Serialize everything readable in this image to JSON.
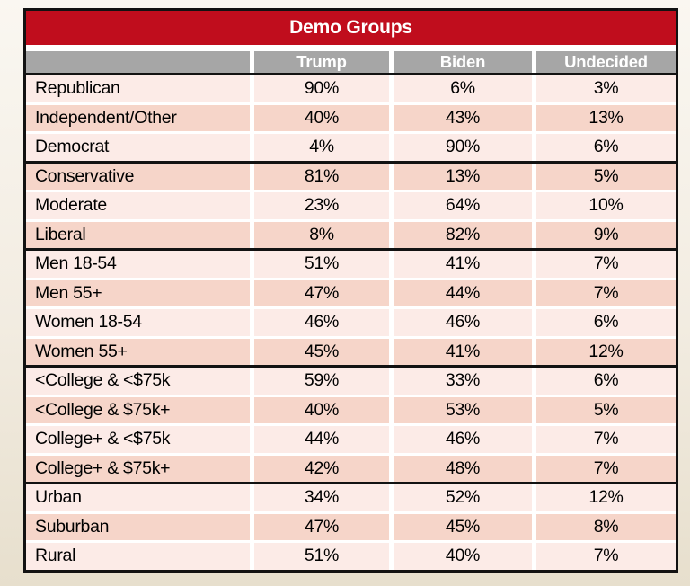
{
  "chart_data": {
    "type": "table",
    "title": "Demo Groups",
    "columns": [
      "",
      "Trump",
      "Biden",
      "Undecided"
    ],
    "row_groups": [
      [
        {
          "label": "Republican",
          "values": [
            "90%",
            "6%",
            "3%"
          ]
        },
        {
          "label": "Independent/Other",
          "values": [
            "40%",
            "43%",
            "13%"
          ]
        },
        {
          "label": "Democrat",
          "values": [
            "4%",
            "90%",
            "6%"
          ]
        }
      ],
      [
        {
          "label": "Conservative",
          "values": [
            "81%",
            "13%",
            "5%"
          ]
        },
        {
          "label": "Moderate",
          "values": [
            "23%",
            "64%",
            "10%"
          ]
        },
        {
          "label": "Liberal",
          "values": [
            "8%",
            "82%",
            "9%"
          ]
        }
      ],
      [
        {
          "label": "Men 18-54",
          "values": [
            "51%",
            "41%",
            "7%"
          ]
        },
        {
          "label": "Men 55+",
          "values": [
            "47%",
            "44%",
            "7%"
          ]
        },
        {
          "label": "Women 18-54",
          "values": [
            "46%",
            "46%",
            "6%"
          ]
        },
        {
          "label": "Women 55+",
          "values": [
            "45%",
            "41%",
            "12%"
          ]
        }
      ],
      [
        {
          "label": "<College & <$75k",
          "values": [
            "59%",
            "33%",
            "6%"
          ]
        },
        {
          "label": "<College & $75k+",
          "values": [
            "40%",
            "53%",
            "5%"
          ]
        },
        {
          "label": "College+ & <$75k",
          "values": [
            "44%",
            "46%",
            "7%"
          ]
        },
        {
          "label": "College+ & $75k+",
          "values": [
            "42%",
            "48%",
            "7%"
          ]
        }
      ],
      [
        {
          "label": "Urban",
          "values": [
            "34%",
            "52%",
            "12%"
          ]
        },
        {
          "label": "Suburban",
          "values": [
            "47%",
            "45%",
            "8%"
          ]
        },
        {
          "label": "Rural",
          "values": [
            "51%",
            "40%",
            "7%"
          ]
        }
      ]
    ],
    "layout_hints": {
      "grid": "white cell dividers, black group separators",
      "legend_position": "none"
    }
  },
  "colors": {
    "header_red": "#C00D1D",
    "header_gray": "#A6A6A6",
    "row_light": "#FCEBE7",
    "row_dark": "#F6D5C9",
    "border_black": "#121212",
    "text_black": "#000000",
    "header_text_white": "#FFFFFF"
  }
}
